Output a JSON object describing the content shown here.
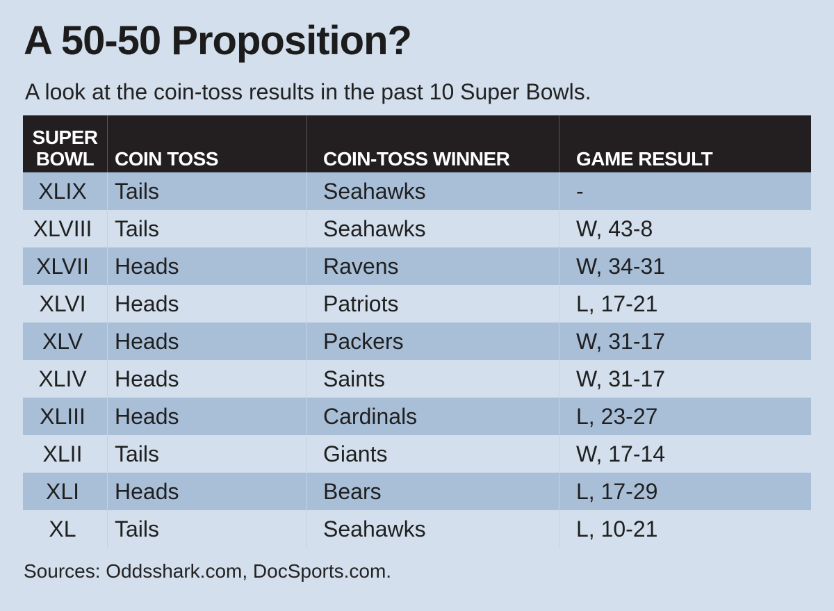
{
  "title": "A 50-50 Proposition?",
  "subtitle": "A look at the coin-toss results in the past 10 Super Bowls.",
  "source": "Sources: Oddsshark.com, DocSports.com.",
  "chart_data": {
    "type": "table",
    "title": "A 50-50 Proposition?",
    "subtitle": "A look at the coin-toss results in the past 10 Super Bowls.",
    "columns": [
      {
        "line1": "SUPER",
        "line2": "BOWL"
      },
      {
        "line1": "",
        "line2": "COIN TOSS"
      },
      {
        "line1": "",
        "line2": "COIN-TOSS WINNER"
      },
      {
        "line1": "",
        "line2": "GAME RESULT"
      }
    ],
    "rows": [
      {
        "super_bowl": "XLIX",
        "coin_toss": "Tails",
        "winner": "Seahawks",
        "result": "-"
      },
      {
        "super_bowl": "XLVIII",
        "coin_toss": "Tails",
        "winner": "Seahawks",
        "result": "W, 43-8"
      },
      {
        "super_bowl": "XLVII",
        "coin_toss": "Heads",
        "winner": "Ravens",
        "result": "W, 34-31"
      },
      {
        "super_bowl": "XLVI",
        "coin_toss": "Heads",
        "winner": "Patriots",
        "result": "L, 17-21"
      },
      {
        "super_bowl": "XLV",
        "coin_toss": "Heads",
        "winner": "Packers",
        "result": "W, 31-17"
      },
      {
        "super_bowl": "XLIV",
        "coin_toss": "Heads",
        "winner": "Saints",
        "result": "W, 31-17"
      },
      {
        "super_bowl": "XLIII",
        "coin_toss": "Heads",
        "winner": "Cardinals",
        "result": "L, 23-27"
      },
      {
        "super_bowl": "XLII",
        "coin_toss": "Tails",
        "winner": "Giants",
        "result": "W, 17-14"
      },
      {
        "super_bowl": "XLI",
        "coin_toss": "Heads",
        "winner": "Bears",
        "result": "L, 17-29"
      },
      {
        "super_bowl": "XL",
        "coin_toss": "Tails",
        "winner": "Seahawks",
        "result": "L, 10-21"
      }
    ]
  },
  "colors": {
    "background": "#d3dfec",
    "header_bg": "#231f20",
    "stripe": "#a9bfd8"
  }
}
